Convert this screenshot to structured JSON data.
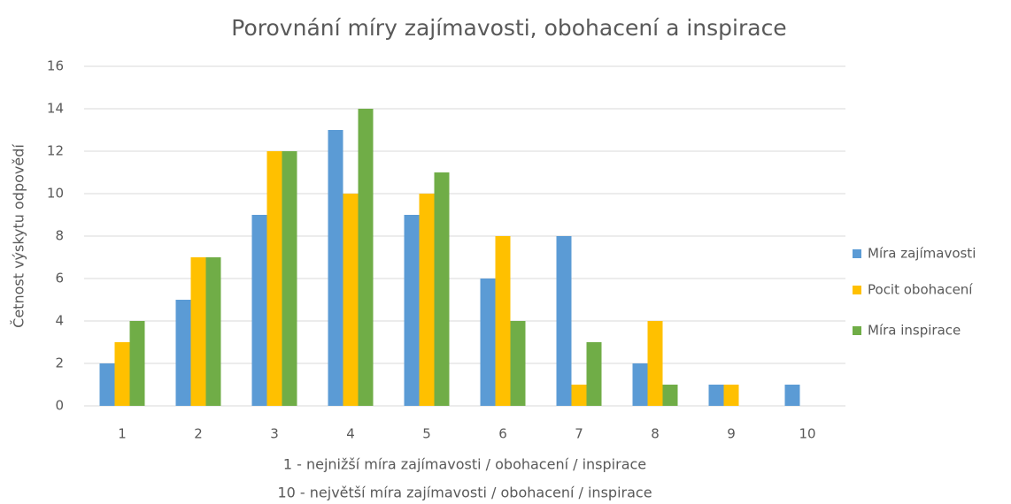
{
  "chart_data": {
    "type": "bar",
    "title": "Porovnání míry zajímavosti, obohacení a inspirace",
    "ylabel": "Četnost výskytu odpovědí",
    "xlabel": [
      "1 - nejnižší míra zajímavosti / obohacení / inspirace",
      "10 - největší míra zajímavosti / obohacení / inspirace"
    ],
    "categories": [
      "1",
      "2",
      "3",
      "4",
      "5",
      "6",
      "7",
      "8",
      "9",
      "10"
    ],
    "series": [
      {
        "name": "Míra zajímavosti",
        "color": "#5b9bd5",
        "values": [
          2,
          5,
          9,
          13,
          9,
          6,
          8,
          2,
          1,
          1
        ]
      },
      {
        "name": "Pocit obohacení",
        "color": "#ffc000",
        "values": [
          3,
          7,
          12,
          10,
          10,
          8,
          1,
          4,
          1,
          0
        ]
      },
      {
        "name": "Míra inspirace",
        "color": "#70ad47",
        "values": [
          4,
          7,
          12,
          14,
          11,
          4,
          3,
          1,
          0,
          0
        ]
      }
    ],
    "ylim": [
      0,
      16
    ],
    "yticks": [
      0,
      2,
      4,
      6,
      8,
      10,
      12,
      14,
      16
    ],
    "grid": true,
    "legend": "right"
  }
}
